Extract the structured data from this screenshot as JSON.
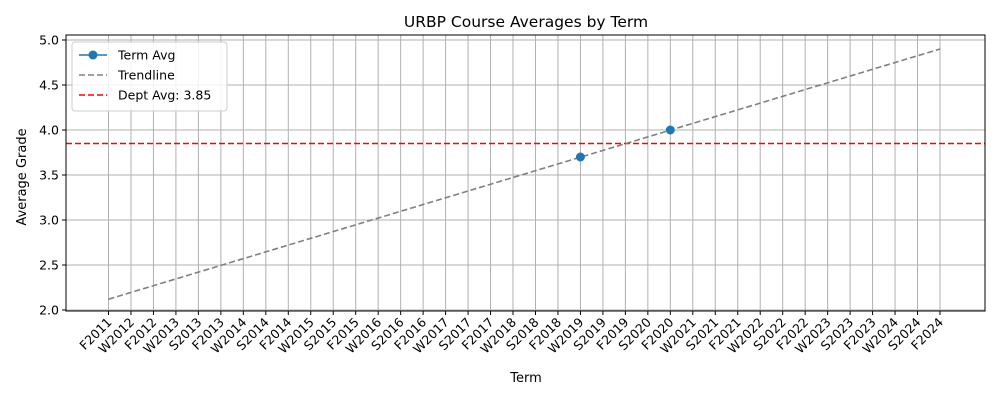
{
  "chart_data": {
    "type": "line",
    "title": "URBP Course Averages by Term",
    "xlabel": "Term",
    "ylabel": "Average Grade",
    "ylim": [
      2.0,
      5.0
    ],
    "yticks": [
      "2.0",
      "2.5",
      "3.0",
      "3.5",
      "4.0",
      "4.5",
      "5.0"
    ],
    "grid": true,
    "legend_position": "top-left",
    "categories": [
      "F2011",
      "W2012",
      "F2012",
      "W2013",
      "S2013",
      "F2013",
      "W2014",
      "S2014",
      "F2014",
      "W2015",
      "S2015",
      "F2015",
      "W2016",
      "S2016",
      "F2016",
      "W2017",
      "S2017",
      "F2017",
      "W2018",
      "S2018",
      "F2018",
      "W2019",
      "S2019",
      "F2019",
      "S2020",
      "F2020",
      "W2021",
      "S2021",
      "F2021",
      "W2022",
      "S2022",
      "F2022",
      "W2023",
      "S2023",
      "F2023",
      "W2024",
      "S2024",
      "F2024"
    ],
    "series": [
      {
        "name": "Term Avg",
        "color": "#1f77b4",
        "points": [
          {
            "term": "W2019",
            "value": 3.7
          },
          {
            "term": "F2020",
            "value": 4.0
          }
        ]
      },
      {
        "name": "Trendline",
        "color": "#808080",
        "start": {
          "term": "F2011",
          "value": 2.12
        },
        "end": {
          "term": "F2024",
          "value": 4.9
        }
      }
    ],
    "reference_line": {
      "label": "Dept Avg: 3.85",
      "value": 3.85,
      "color": "#ff0000"
    }
  }
}
